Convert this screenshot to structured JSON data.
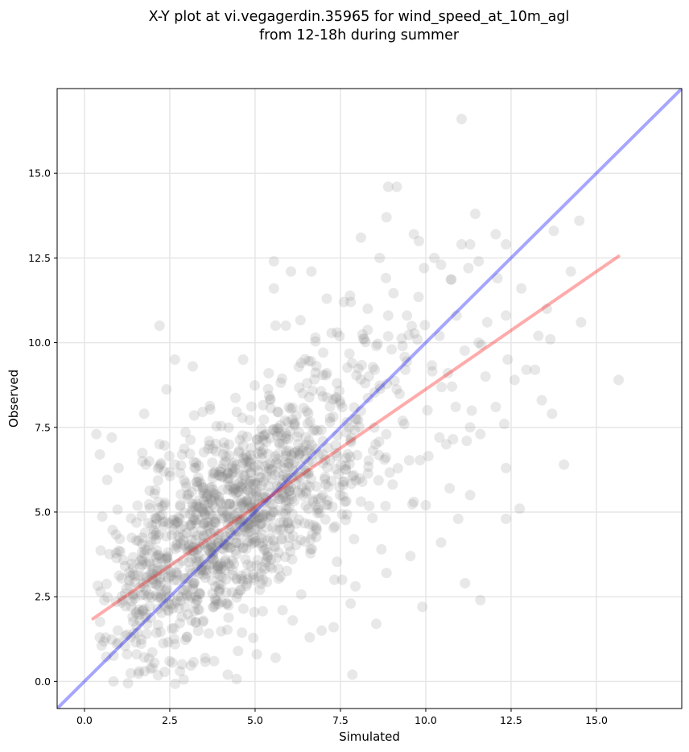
{
  "chart_data": {
    "type": "scatter",
    "title_line1": "X-Y plot at vi.vegagerdin.35965 for wind_speed_at_10m_agl",
    "title_line2": "from 12-18h during summer",
    "xlabel": "Simulated",
    "ylabel": "Observed",
    "xlim": [
      -0.8,
      17.5
    ],
    "ylim": [
      -0.8,
      17.5
    ],
    "xticks": [
      0.0,
      2.5,
      5.0,
      7.5,
      10.0,
      12.5,
      15.0
    ],
    "yticks": [
      0.0,
      2.5,
      5.0,
      7.5,
      10.0,
      12.5,
      15.0
    ],
    "xtick_labels": [
      "0.0",
      "2.5",
      "5.0",
      "7.5",
      "10.0",
      "12.5",
      "15.0"
    ],
    "ytick_labels": [
      "0.0",
      "2.5",
      "5.0",
      "7.5",
      "10.0",
      "12.5",
      "15.0"
    ],
    "grid": true,
    "point_color": "#7f7f7f",
    "point_opacity": 0.18,
    "one_to_one_line": {
      "color": "#0000ff",
      "opacity": 0.35,
      "x": [
        -0.8,
        17.5
      ],
      "y": [
        -0.8,
        17.5
      ]
    },
    "fit_line": {
      "color": "#ff0000",
      "opacity": 0.33,
      "x": [
        0.25,
        15.65
      ],
      "y": [
        1.85,
        12.55
      ]
    },
    "points": [
      [
        11.05,
        16.6
      ],
      [
        8.9,
        14.6
      ],
      [
        9.15,
        14.6
      ],
      [
        8.85,
        13.7
      ],
      [
        11.45,
        13.8
      ],
      [
        14.5,
        13.6
      ],
      [
        9.65,
        13.2
      ],
      [
        9.8,
        13.0
      ],
      [
        12.05,
        13.2
      ],
      [
        8.1,
        13.1
      ],
      [
        13.75,
        13.3
      ],
      [
        11.05,
        12.9
      ],
      [
        11.3,
        12.9
      ],
      [
        12.35,
        12.9
      ],
      [
        8.65,
        12.5
      ],
      [
        5.55,
        12.4
      ],
      [
        6.05,
        12.1
      ],
      [
        6.65,
        12.1
      ],
      [
        9.95,
        12.2
      ],
      [
        10.25,
        12.5
      ],
      [
        10.45,
        12.3
      ],
      [
        11.25,
        12.2
      ],
      [
        11.55,
        12.4
      ],
      [
        14.25,
        12.1
      ],
      [
        12.1,
        11.9
      ],
      [
        12.8,
        11.6
      ],
      [
        5.55,
        11.6
      ],
      [
        7.1,
        11.3
      ],
      [
        7.6,
        11.2
      ],
      [
        7.8,
        11.2
      ],
      [
        8.3,
        11.0
      ],
      [
        8.9,
        10.8
      ],
      [
        9.45,
        10.8
      ],
      [
        10.9,
        10.8
      ],
      [
        11.8,
        10.6
      ],
      [
        12.35,
        10.8
      ],
      [
        13.55,
        11.0
      ],
      [
        14.55,
        10.6
      ],
      [
        2.2,
        10.5
      ],
      [
        5.6,
        10.5
      ],
      [
        5.9,
        10.5
      ],
      [
        7.4,
        10.3
      ],
      [
        8.2,
        10.1
      ],
      [
        8.55,
        9.9
      ],
      [
        9.0,
        9.8
      ],
      [
        10.4,
        10.2
      ],
      [
        11.55,
        10.0
      ],
      [
        13.3,
        10.2
      ],
      [
        13.65,
        10.1
      ],
      [
        12.4,
        9.5
      ],
      [
        12.95,
        9.2
      ],
      [
        13.2,
        9.2
      ],
      [
        15.65,
        8.9
      ],
      [
        4.65,
        9.5
      ],
      [
        2.65,
        9.5
      ],
      [
        6.35,
        9.4
      ],
      [
        7.1,
        9.1
      ],
      [
        9.4,
        9.2
      ],
      [
        10.65,
        9.1
      ],
      [
        11.75,
        9.0
      ],
      [
        12.6,
        8.9
      ],
      [
        13.4,
        8.3
      ],
      [
        12.05,
        8.1
      ],
      [
        12.3,
        7.6
      ],
      [
        13.7,
        7.9
      ],
      [
        11.3,
        7.5
      ],
      [
        10.4,
        7.2
      ],
      [
        10.6,
        7.0
      ],
      [
        11.2,
        7.1
      ],
      [
        11.6,
        7.3
      ],
      [
        12.35,
        6.3
      ],
      [
        14.05,
        6.4
      ],
      [
        1.75,
        7.9
      ],
      [
        2.2,
        7.0
      ],
      [
        0.35,
        7.3
      ],
      [
        0.8,
        7.2
      ],
      [
        0.45,
        6.7
      ],
      [
        1.7,
        6.5
      ],
      [
        1.8,
        6.4
      ],
      [
        1.0,
        6.3
      ],
      [
        2.65,
        6.4
      ],
      [
        11.3,
        5.5
      ],
      [
        10.7,
        5.7
      ],
      [
        10.0,
        5.2
      ],
      [
        9.65,
        5.3
      ],
      [
        10.95,
        4.8
      ],
      [
        12.75,
        5.1
      ],
      [
        12.35,
        4.8
      ],
      [
        10.45,
        4.1
      ],
      [
        9.55,
        3.7
      ],
      [
        9.9,
        2.2
      ],
      [
        11.15,
        2.9
      ],
      [
        11.6,
        2.4
      ],
      [
        8.85,
        3.2
      ],
      [
        8.7,
        3.9
      ],
      [
        7.9,
        4.2
      ],
      [
        7.55,
        3.0
      ],
      [
        7.3,
        1.6
      ],
      [
        7.8,
        2.3
      ],
      [
        7.85,
        0.2
      ],
      [
        8.55,
        1.7
      ],
      [
        6.95,
        1.5
      ],
      [
        6.6,
        1.3
      ],
      [
        6.1,
        1.8
      ],
      [
        5.6,
        0.7
      ],
      [
        5.05,
        0.8
      ],
      [
        4.5,
        0.9
      ],
      [
        4.2,
        0.2
      ],
      [
        3.8,
        0.6
      ],
      [
        2.8,
        0.3
      ],
      [
        1.6,
        0.3
      ],
      [
        0.85,
        0.0
      ],
      [
        0.45,
        1.3
      ],
      [
        0.95,
        1.1
      ]
    ]
  }
}
